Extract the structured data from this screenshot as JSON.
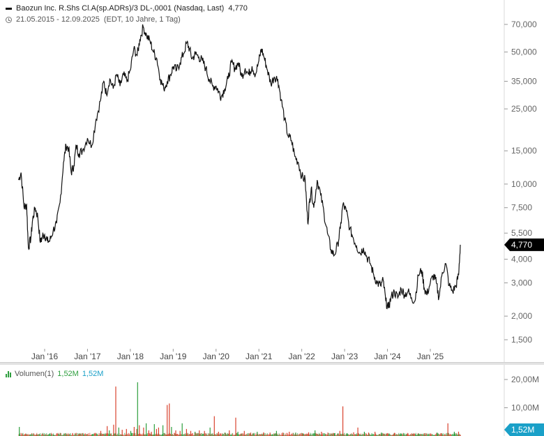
{
  "header": {
    "title": "Baozun Inc. R.Shs Cl.A(sp.ADRs)/3 DL-,0001 (Nasdaq, Last)",
    "last_value": "4,770",
    "date_range": "21.05.2015 - 12.09.2025",
    "range_info": "(EDT, 10 Jahre, 1 Tag)"
  },
  "volume_legend": {
    "label": "Volumen(1)",
    "value1": "1,52M",
    "value2": "1,52M"
  },
  "colors": {
    "price_line": "#111111",
    "volume_up": "#2e9e3e",
    "volume_down": "#d9432f",
    "price_badge": "#000000",
    "volume_badge": "#1aa0c8"
  },
  "chart_data": [
    {
      "type": "line",
      "scale": "log",
      "x_unit": "year",
      "x_tick_labels": [
        "Jan '16",
        "Jan '17",
        "Jan '18",
        "Jan '19",
        "Jan '20",
        "Jan '21",
        "Jan '22",
        "Jan '23",
        "Jan '24",
        "Jan '25"
      ],
      "x_tick_values": [
        2016,
        2017,
        2018,
        2019,
        2020,
        2021,
        2022,
        2023,
        2024,
        2025
      ],
      "y_tick_labels": [
        "70,000",
        "50,000",
        "35,000",
        "25,000",
        "15,000",
        "10,000",
        "7,500",
        "5,500",
        "4,000",
        "3,000",
        "2,000",
        "1,500"
      ],
      "y_tick_values": [
        70000,
        50000,
        35000,
        25000,
        15000,
        10000,
        7500,
        5500,
        4000,
        3000,
        2000,
        1500
      ],
      "last_label": "4,770",
      "last_value": 4770,
      "series": [
        {
          "points": [
            [
              2015.39,
              10500
            ],
            [
              2015.45,
              11500
            ],
            [
              2015.52,
              7500
            ],
            [
              2015.58,
              7800
            ],
            [
              2015.62,
              4600
            ],
            [
              2015.68,
              5200
            ],
            [
              2015.72,
              6500
            ],
            [
              2015.78,
              7500
            ],
            [
              2015.84,
              6700
            ],
            [
              2015.9,
              4900
            ],
            [
              2015.95,
              5300
            ],
            [
              2016.0,
              5400
            ],
            [
              2016.06,
              5000
            ],
            [
              2016.12,
              5000
            ],
            [
              2016.2,
              5700
            ],
            [
              2016.28,
              6200
            ],
            [
              2016.36,
              8000
            ],
            [
              2016.44,
              13000
            ],
            [
              2016.5,
              16000
            ],
            [
              2016.56,
              15500
            ],
            [
              2016.62,
              11500
            ],
            [
              2016.68,
              12500
            ],
            [
              2016.74,
              16000
            ],
            [
              2016.8,
              14500
            ],
            [
              2016.88,
              15000
            ],
            [
              2017.0,
              17500
            ],
            [
              2017.1,
              16000
            ],
            [
              2017.2,
              22000
            ],
            [
              2017.3,
              27500
            ],
            [
              2017.38,
              35000
            ],
            [
              2017.44,
              30000
            ],
            [
              2017.52,
              36000
            ],
            [
              2017.6,
              32000
            ],
            [
              2017.68,
              38000
            ],
            [
              2017.76,
              33000
            ],
            [
              2017.84,
              38000
            ],
            [
              2017.92,
              35000
            ],
            [
              2018.0,
              40000
            ],
            [
              2018.08,
              52000
            ],
            [
              2018.16,
              48000
            ],
            [
              2018.22,
              58000
            ],
            [
              2018.3,
              68000
            ],
            [
              2018.38,
              61000
            ],
            [
              2018.46,
              57000
            ],
            [
              2018.54,
              50000
            ],
            [
              2018.62,
              46000
            ],
            [
              2018.7,
              36000
            ],
            [
              2018.78,
              32000
            ],
            [
              2018.86,
              35000
            ],
            [
              2018.94,
              38000
            ],
            [
              2019.0,
              42000
            ],
            [
              2019.08,
              40000
            ],
            [
              2019.16,
              44000
            ],
            [
              2019.24,
              49000
            ],
            [
              2019.32,
              56000
            ],
            [
              2019.38,
              52000
            ],
            [
              2019.44,
              46000
            ],
            [
              2019.52,
              49000
            ],
            [
              2019.6,
              47000
            ],
            [
              2019.68,
              45000
            ],
            [
              2019.76,
              41000
            ],
            [
              2019.84,
              36000
            ],
            [
              2019.92,
              33000
            ],
            [
              2020.0,
              33000
            ],
            [
              2020.06,
              31000
            ],
            [
              2020.12,
              29000
            ],
            [
              2020.2,
              32000
            ],
            [
              2020.28,
              36000
            ],
            [
              2020.36,
              44000
            ],
            [
              2020.44,
              41000
            ],
            [
              2020.52,
              44000
            ],
            [
              2020.6,
              37000
            ],
            [
              2020.68,
              41000
            ],
            [
              2020.76,
              38000
            ],
            [
              2020.84,
              42000
            ],
            [
              2020.92,
              38000
            ],
            [
              2021.0,
              45000
            ],
            [
              2021.06,
              52000
            ],
            [
              2021.12,
              47000
            ],
            [
              2021.2,
              40000
            ],
            [
              2021.28,
              34000
            ],
            [
              2021.36,
              37000
            ],
            [
              2021.44,
              36000
            ],
            [
              2021.52,
              28000
            ],
            [
              2021.6,
              22000
            ],
            [
              2021.68,
              18000
            ],
            [
              2021.76,
              17000
            ],
            [
              2021.84,
              14000
            ],
            [
              2021.92,
              13000
            ],
            [
              2022.0,
              11000
            ],
            [
              2022.08,
              10500
            ],
            [
              2022.14,
              6200
            ],
            [
              2022.18,
              8000
            ],
            [
              2022.22,
              9500
            ],
            [
              2022.28,
              7500
            ],
            [
              2022.36,
              10500
            ],
            [
              2022.44,
              8800
            ],
            [
              2022.52,
              7000
            ],
            [
              2022.6,
              5500
            ],
            [
              2022.68,
              4500
            ],
            [
              2022.76,
              4200
            ],
            [
              2022.84,
              4800
            ],
            [
              2022.9,
              5800
            ],
            [
              2022.96,
              7800
            ],
            [
              2023.04,
              7200
            ],
            [
              2023.12,
              5800
            ],
            [
              2023.2,
              5200
            ],
            [
              2023.28,
              4700
            ],
            [
              2023.36,
              4300
            ],
            [
              2023.44,
              4600
            ],
            [
              2023.52,
              4100
            ],
            [
              2023.6,
              3800
            ],
            [
              2023.68,
              3300
            ],
            [
              2023.76,
              3000
            ],
            [
              2023.84,
              2900
            ],
            [
              2023.9,
              3100
            ],
            [
              2023.96,
              2400
            ],
            [
              2024.02,
              2200
            ],
            [
              2024.08,
              2500
            ],
            [
              2024.16,
              2700
            ],
            [
              2024.24,
              2500
            ],
            [
              2024.32,
              2800
            ],
            [
              2024.4,
              2600
            ],
            [
              2024.48,
              2700
            ],
            [
              2024.56,
              2500
            ],
            [
              2024.64,
              2400
            ],
            [
              2024.72,
              3300
            ],
            [
              2024.8,
              3500
            ],
            [
              2024.86,
              2800
            ],
            [
              2024.92,
              2600
            ],
            [
              2025.0,
              3000
            ],
            [
              2025.08,
              3300
            ],
            [
              2025.14,
              3000
            ],
            [
              2025.2,
              2500
            ],
            [
              2025.28,
              3400
            ],
            [
              2025.36,
              3800
            ],
            [
              2025.44,
              2900
            ],
            [
              2025.52,
              2700
            ],
            [
              2025.6,
              2900
            ],
            [
              2025.66,
              3300
            ],
            [
              2025.7,
              4770
            ]
          ]
        }
      ]
    },
    {
      "type": "bar",
      "title": "Volumen(1)",
      "y_tick_labels": [
        "20,00M",
        "10,00M"
      ],
      "y_tick_values": [
        20000000,
        10000000
      ],
      "last_label": "1,52M",
      "last_value": 1520000,
      "series": [
        {
          "points": [
            [
              2015.4,
              3200000
            ],
            [
              2015.55,
              700000
            ],
            [
              2015.8,
              500000
            ],
            [
              2016.2,
              400000
            ],
            [
              2016.5,
              600000
            ],
            [
              2016.8,
              500000
            ],
            [
              2017.1,
              700000
            ],
            [
              2017.3,
              1800000
            ],
            [
              2017.45,
              3500000
            ],
            [
              2017.5,
              2000000
            ],
            [
              2017.6,
              4000000
            ],
            [
              2017.65,
              17500000
            ],
            [
              2017.72,
              3000000
            ],
            [
              2017.8,
              2200000
            ],
            [
              2017.9,
              2500000
            ],
            [
              2018.0,
              1800000
            ],
            [
              2018.08,
              3200000
            ],
            [
              2018.14,
              2500000
            ],
            [
              2018.16,
              19000000
            ],
            [
              2018.2,
              3800000
            ],
            [
              2018.3,
              3000000
            ],
            [
              2018.36,
              4500000
            ],
            [
              2018.42,
              2000000
            ],
            [
              2018.48,
              1500000
            ],
            [
              2018.55,
              4200000
            ],
            [
              2018.6,
              2500000
            ],
            [
              2018.65,
              3000000
            ],
            [
              2018.75,
              3800000
            ],
            [
              2018.85,
              11000000
            ],
            [
              2018.9,
              11500000
            ],
            [
              2018.95,
              3200000
            ],
            [
              2019.05,
              2000000
            ],
            [
              2019.15,
              1800000
            ],
            [
              2019.2,
              4500000
            ],
            [
              2019.3,
              2500000
            ],
            [
              2019.4,
              1800000
            ],
            [
              2019.5,
              1500000
            ],
            [
              2019.6,
              2000000
            ],
            [
              2019.72,
              1800000
            ],
            [
              2019.85,
              3000000
            ],
            [
              2019.95,
              7000000
            ],
            [
              2020.05,
              1500000
            ],
            [
              2020.2,
              1200000
            ],
            [
              2020.3,
              2000000
            ],
            [
              2020.45,
              6500000
            ],
            [
              2020.5,
              1500000
            ],
            [
              2020.65,
              1800000
            ],
            [
              2020.8,
              1200000
            ],
            [
              2020.95,
              1500000
            ],
            [
              2021.1,
              1300000
            ],
            [
              2021.25,
              1200000
            ],
            [
              2021.4,
              1800000
            ],
            [
              2021.55,
              1200000
            ],
            [
              2021.7,
              1500000
            ],
            [
              2021.85,
              1200000
            ],
            [
              2022.0,
              1000000
            ],
            [
              2022.15,
              1300000
            ],
            [
              2022.3,
              2000000
            ],
            [
              2022.45,
              1500000
            ],
            [
              2022.6,
              1200000
            ],
            [
              2022.75,
              1000000
            ],
            [
              2022.88,
              1800000
            ],
            [
              2022.95,
              10500000
            ],
            [
              2023.05,
              1000000
            ],
            [
              2023.2,
              1300000
            ],
            [
              2023.3,
              3000000
            ],
            [
              2023.45,
              1500000
            ],
            [
              2023.55,
              1200000
            ],
            [
              2023.7,
              1500000
            ],
            [
              2023.85,
              1200000
            ],
            [
              2024.0,
              1000000
            ],
            [
              2024.15,
              1100000
            ],
            [
              2024.3,
              900000
            ],
            [
              2024.45,
              800000
            ],
            [
              2024.6,
              900000
            ],
            [
              2024.72,
              900000
            ],
            [
              2024.85,
              1000000
            ],
            [
              2025.0,
              900000
            ],
            [
              2025.15,
              1200000
            ],
            [
              2025.25,
              1000000
            ],
            [
              2025.4,
              4500000
            ],
            [
              2025.55,
              1500000
            ],
            [
              2025.65,
              1520000
            ]
          ]
        }
      ]
    }
  ]
}
